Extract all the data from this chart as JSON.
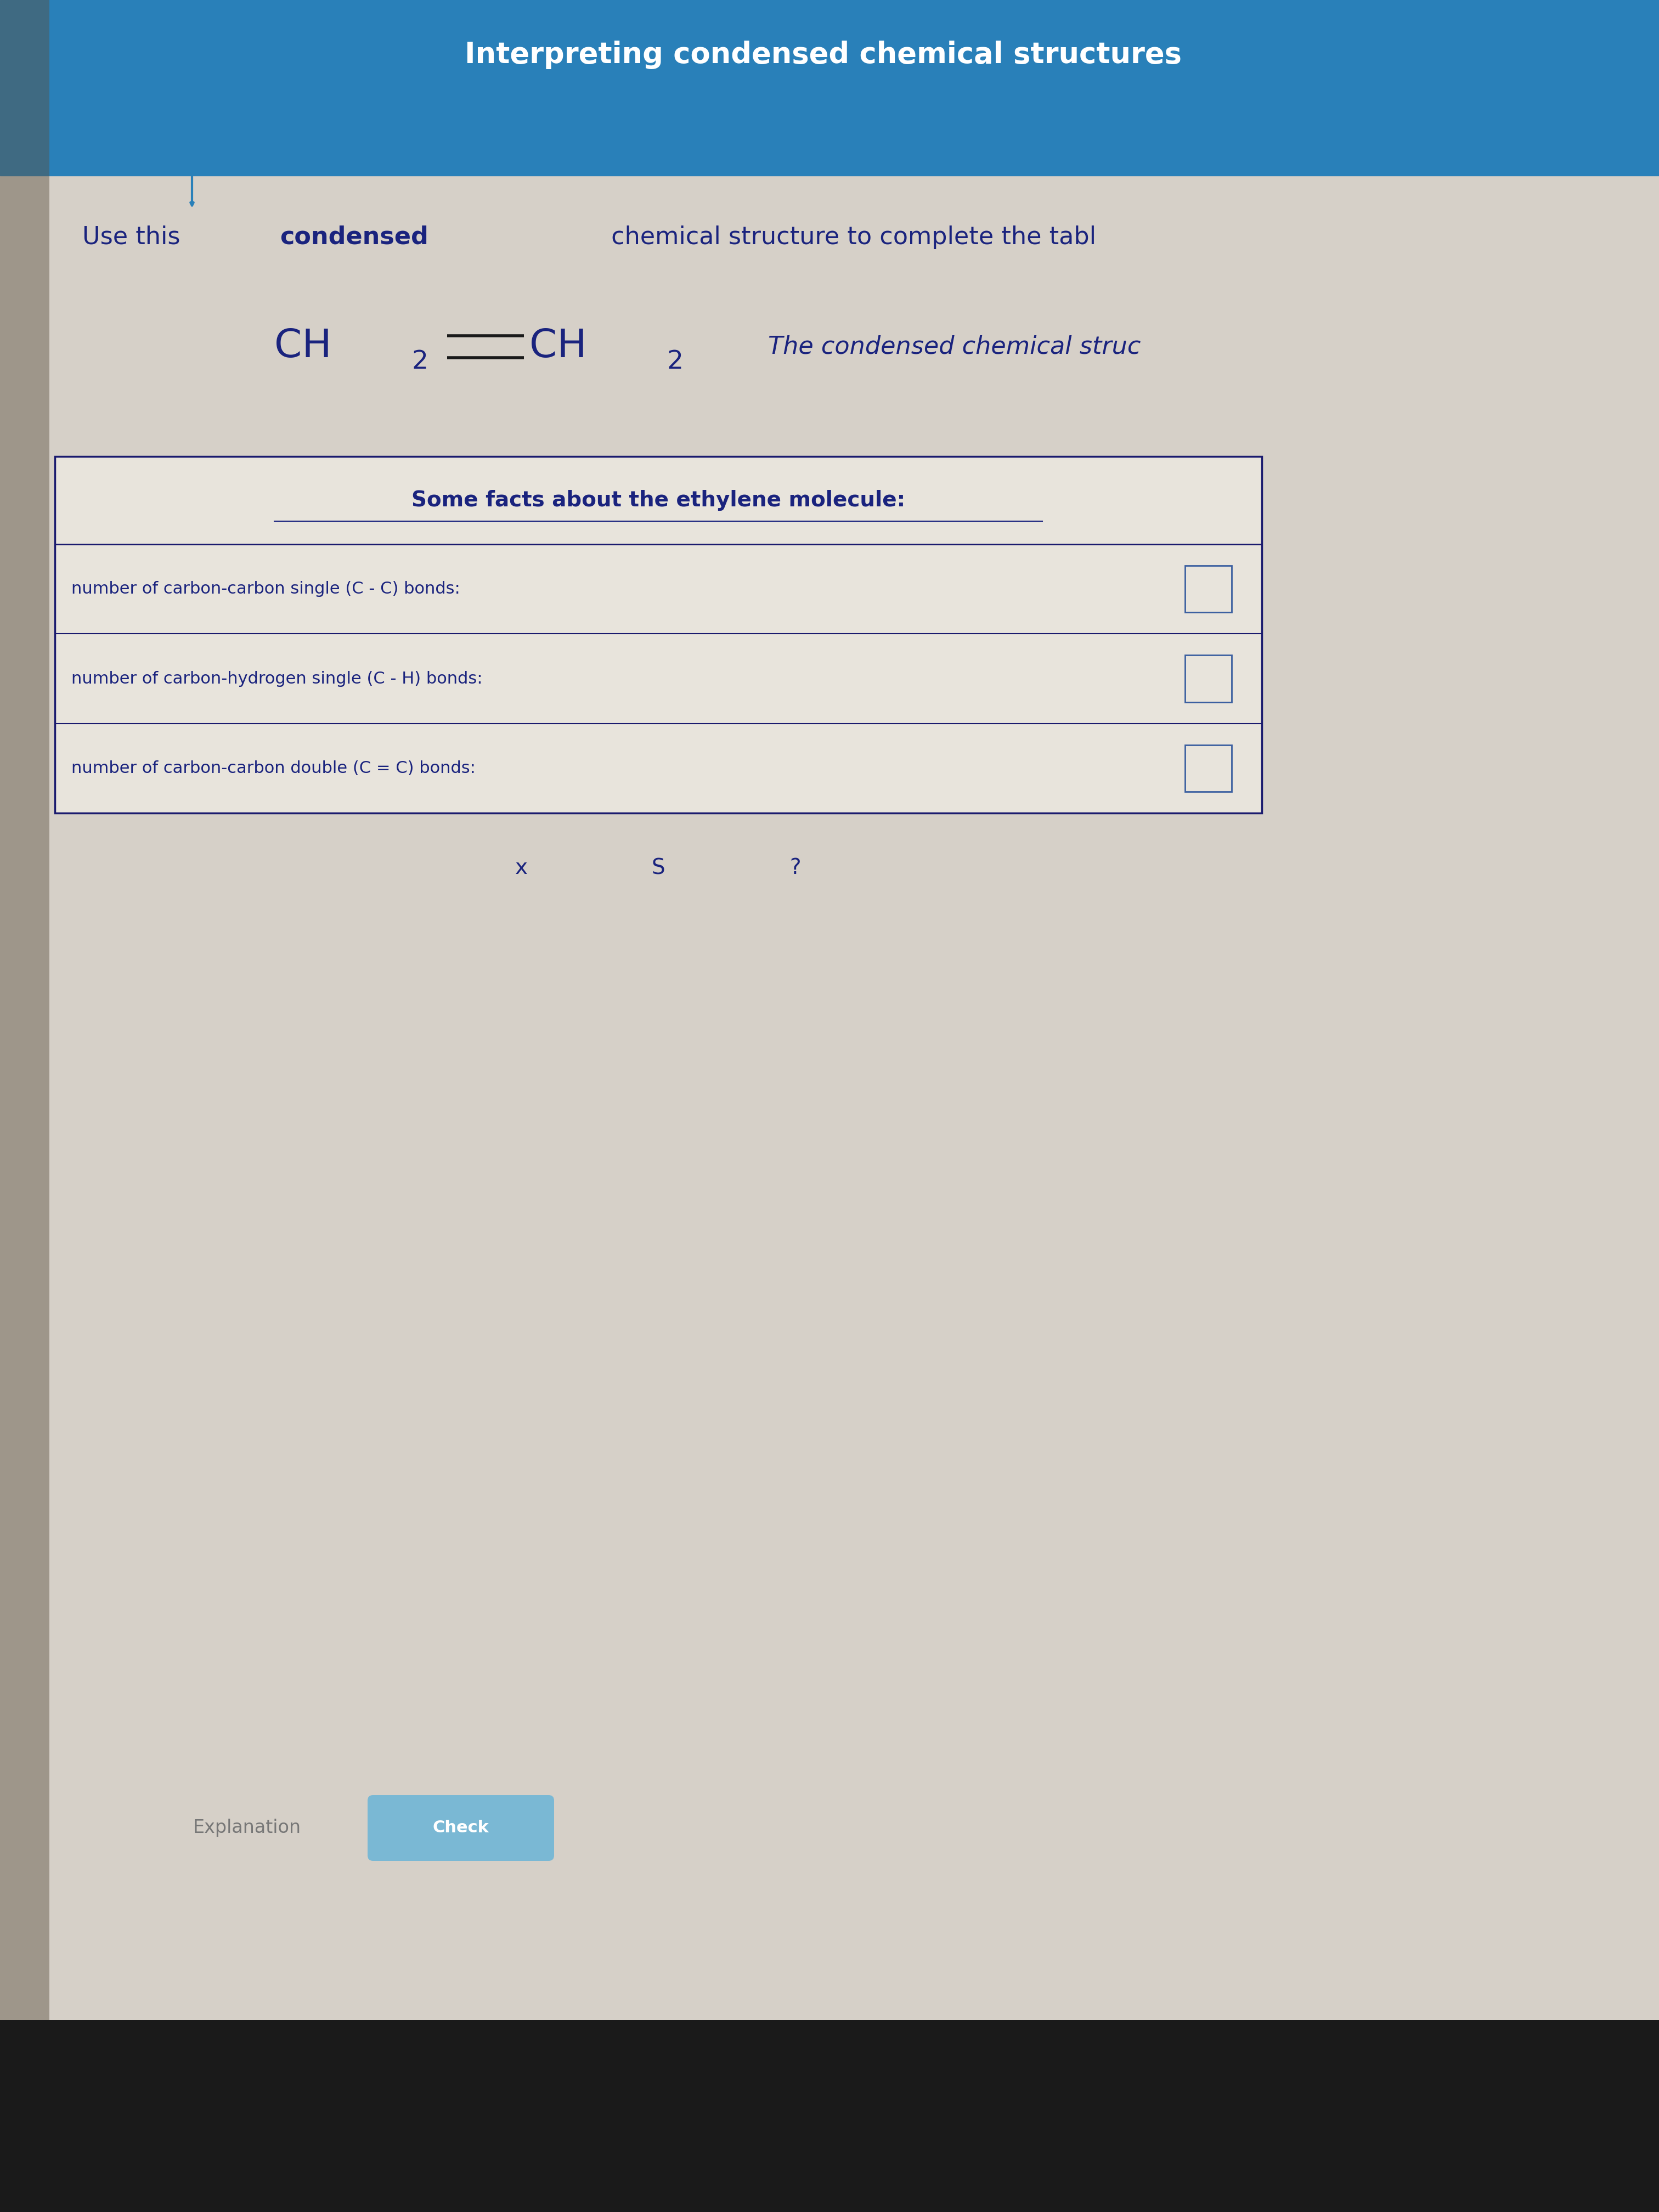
{
  "bg_top_color": "#2980b9",
  "bg_main_color": "#d6d0c8",
  "title_bar_text": "Interpreting condensed chemical structures",
  "instruction_text_normal": "Use this ",
  "instruction_text_bold": "condensed",
  "instruction_text_rest": " chemical structure to complete the tabl",
  "formula_note": "The condensed chemical struc",
  "table_title": "Some facts about the ethylene molecule:",
  "row1_label": "number of carbon-carbon single (C - C) bonds:",
  "row2_label": "number of carbon-hydrogen single (C - H) bonds:",
  "row3_label": "number of carbon-carbon double (C = C) bonds:",
  "bottom_buttons": [
    "x",
    "S",
    "?"
  ],
  "explanation_label": "Explanation",
  "check_button": "Check",
  "table_border_color": "#1a1a6e",
  "table_bg_color": "#e8e4dc",
  "input_box_color": "#3b5fa0",
  "text_color": "#1a237e",
  "formula_color": "#1a237e",
  "bg_sidebar_color": "#5a5040",
  "bottom_bar_color": "#1a1a1a"
}
